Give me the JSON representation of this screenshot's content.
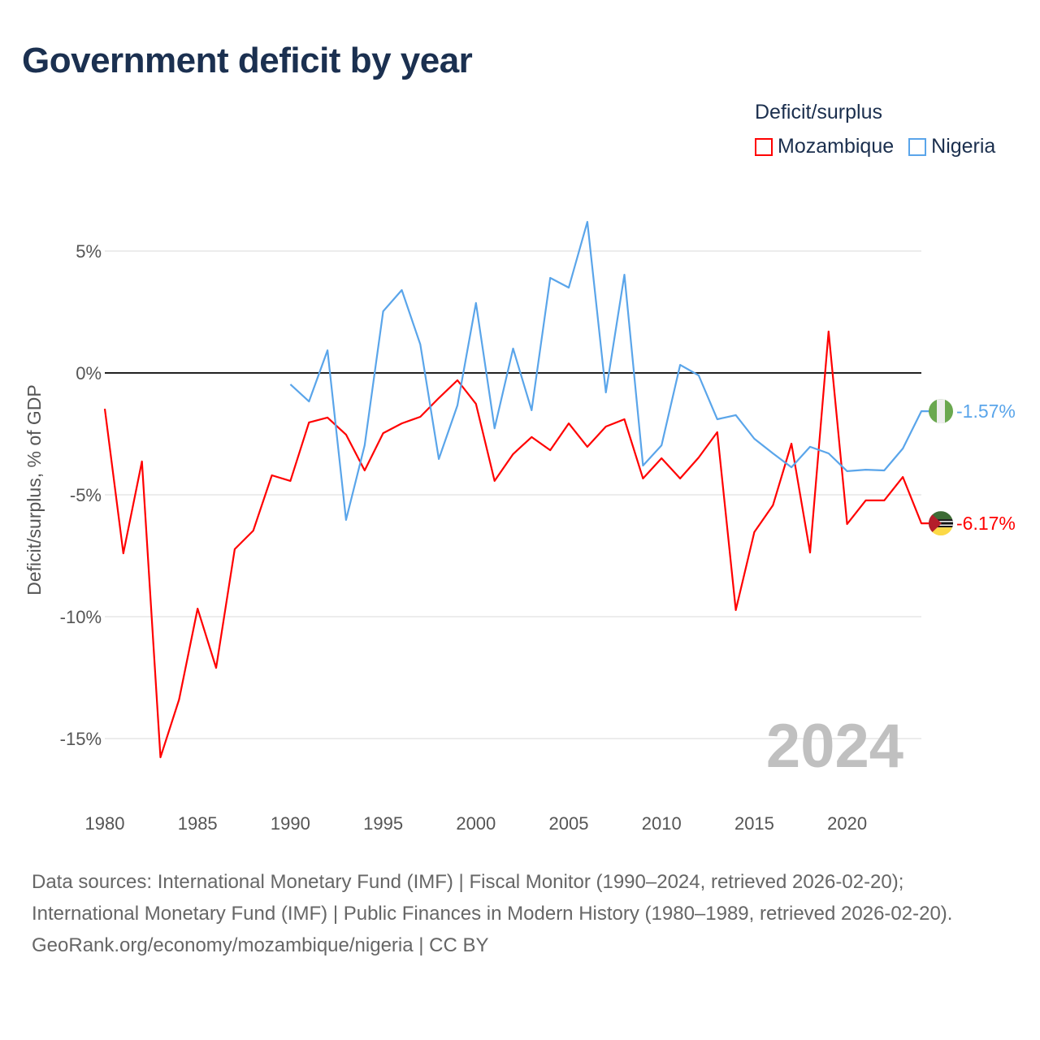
{
  "title": "Government deficit by year",
  "legend": {
    "title": "Deficit/surplus",
    "items": [
      {
        "label": "Mozambique",
        "color": "#ff0000"
      },
      {
        "label": "Nigeria",
        "color": "#5aa5ea"
      }
    ]
  },
  "year_watermark": "2024",
  "source": {
    "line1": "Data sources: International Monetary Fund (IMF) | Fiscal Monitor (1990–2024, retrieved 2026-02-20); International Monetary Fund (IMF) | Public Finances in Modern History (1980–1989, retrieved 2026-02-20).",
    "line2": "GeoRank.org/economy/mozambique/nigeria | CC BY"
  },
  "chart_data": {
    "type": "line",
    "title": "Government deficit by year",
    "xlabel": "",
    "ylabel": "Deficit/surplus, % of GDP",
    "xlim": [
      1980,
      2024
    ],
    "ylim": [
      -17,
      8
    ],
    "yticks": [
      5,
      0,
      -5,
      -10,
      -15
    ],
    "ytick_labels": [
      "5%",
      "0%",
      "-5%",
      "-10%",
      "-15%"
    ],
    "xticks": [
      1980,
      1985,
      1990,
      1995,
      2000,
      2005,
      2010,
      2015,
      2020
    ],
    "xtick_labels": [
      "1980",
      "1985",
      "1990",
      "1995",
      "2000",
      "2005",
      "2010",
      "2015",
      "2020"
    ],
    "grid": true,
    "legend_position": "top-right",
    "series": [
      {
        "name": "Mozambique",
        "color": "#ff0000",
        "end_label": "-6.17%",
        "start_year": 1980,
        "values": [
          -1.47,
          -7.4,
          -3.63,
          -15.77,
          -13.4,
          -9.67,
          -12.1,
          -7.23,
          -6.47,
          -4.2,
          -4.43,
          -2.03,
          -1.83,
          -2.53,
          -4.0,
          -2.47,
          -2.07,
          -1.8,
          -1.03,
          -0.3,
          -1.27,
          -4.43,
          -3.33,
          -2.63,
          -3.17,
          -2.07,
          -3.03,
          -2.2,
          -1.9,
          -4.33,
          -3.5,
          -4.33,
          -3.47,
          -2.43,
          -9.73,
          -6.53,
          -5.43,
          -2.9,
          -7.37,
          1.7,
          -6.2,
          -5.23,
          -5.23,
          -4.27,
          -6.17
        ]
      },
      {
        "name": "Nigeria",
        "color": "#5aa5ea",
        "end_label": "-1.57%",
        "start_year": 1990,
        "values": [
          -0.47,
          -1.17,
          0.93,
          -6.03,
          -2.97,
          2.53,
          3.4,
          1.17,
          -3.53,
          -1.33,
          2.87,
          -2.27,
          1.0,
          -1.53,
          3.9,
          3.5,
          6.2,
          -0.8,
          4.03,
          -3.8,
          -2.97,
          0.33,
          -0.1,
          -1.9,
          -1.73,
          -2.7,
          -3.3,
          -3.87,
          -3.03,
          -3.3,
          -4.03,
          -3.97,
          -4.0,
          -3.1,
          -1.57
        ]
      }
    ]
  }
}
